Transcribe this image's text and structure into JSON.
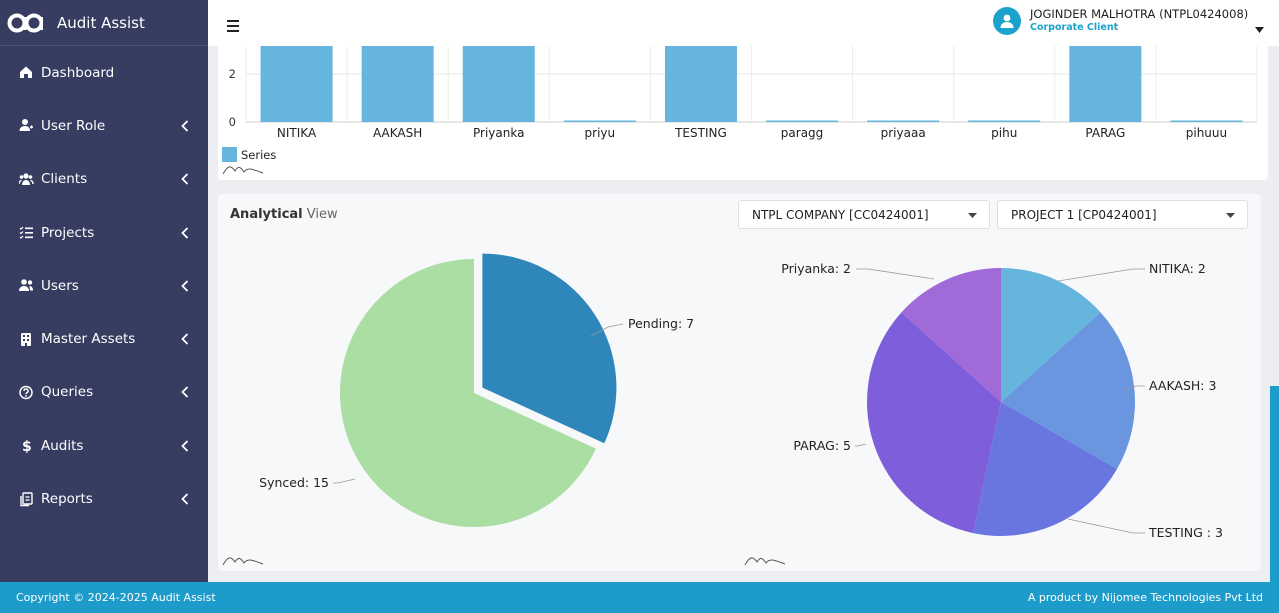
{
  "app": {
    "name": "Audit Assist"
  },
  "topbar": {
    "user_name": "JOGINDER MALHOTRA (NTPL0424008)",
    "user_role": "Corporate Client"
  },
  "sidebar": {
    "items": [
      {
        "label": "Dashboard",
        "icon": "home-icon",
        "has_submenu": false
      },
      {
        "label": "User Role",
        "icon": "user-role-icon",
        "has_submenu": true
      },
      {
        "label": "Clients",
        "icon": "clients-icon",
        "has_submenu": true
      },
      {
        "label": "Projects",
        "icon": "projects-icon",
        "has_submenu": true
      },
      {
        "label": "Users",
        "icon": "users-icon",
        "has_submenu": true
      },
      {
        "label": "Master Assets",
        "icon": "building-icon",
        "has_submenu": true
      },
      {
        "label": "Queries",
        "icon": "question-icon",
        "has_submenu": true
      },
      {
        "label": "Audits",
        "icon": "dollar-icon",
        "has_submenu": true
      },
      {
        "label": "Reports",
        "icon": "reports-icon",
        "has_submenu": true
      }
    ]
  },
  "bar_chart": {
    "chart_data": {
      "type": "bar",
      "categories": [
        "NITIKA",
        "AAKASH",
        "Priyanka",
        "priyu",
        "TESTING",
        "paragg",
        "priyaaa",
        "pihu",
        "PARAG",
        "pihuuu"
      ],
      "series": [
        {
          "name": "Series",
          "values": [
            3,
            3,
            3,
            0,
            3,
            0,
            0,
            0,
            3,
            0
          ],
          "color": "#65b5dd"
        }
      ],
      "y_ticks": [
        0,
        2
      ],
      "grid": true,
      "legend": "bottom-left"
    }
  },
  "analytical": {
    "title_bold": "Analytical",
    "title_rest": "View",
    "company_select": "NTPL COMPANY [CC0424001]",
    "project_select": "PROJECT 1 [CP0424001]"
  },
  "pie_status": {
    "chart_data": {
      "type": "pie",
      "slices": [
        {
          "name": "Pending",
          "value": 7,
          "label": "Pending: 7",
          "color": "#2e86bb",
          "exploded": true
        },
        {
          "name": "Synced",
          "value": 15,
          "label": "Synced: 15",
          "color": "#aadea3",
          "exploded": false
        }
      ]
    }
  },
  "pie_users": {
    "chart_data": {
      "type": "pie",
      "slices": [
        {
          "name": "NITIKA",
          "value": 2,
          "label": "NITIKA: 2",
          "color": "#65b5dd"
        },
        {
          "name": "AAKASH",
          "value": 3,
          "label": "AAKASH: 3",
          "color": "#6a96e0"
        },
        {
          "name": "TESTING",
          "value": 3,
          "label": "TESTING : 3",
          "color": "#6a76e0"
        },
        {
          "name": "PARAG",
          "value": 5,
          "label": "PARAG: 5",
          "color": "#7e5edb"
        },
        {
          "name": "Priyanka",
          "value": 2,
          "label": "Priyanka: 2",
          "color": "#a06ad9"
        }
      ]
    }
  },
  "footer": {
    "copyright": "Copyright © 2024-2025 Audit Assist",
    "product": "A product by Nijomee Technologies Pvt Ltd"
  }
}
